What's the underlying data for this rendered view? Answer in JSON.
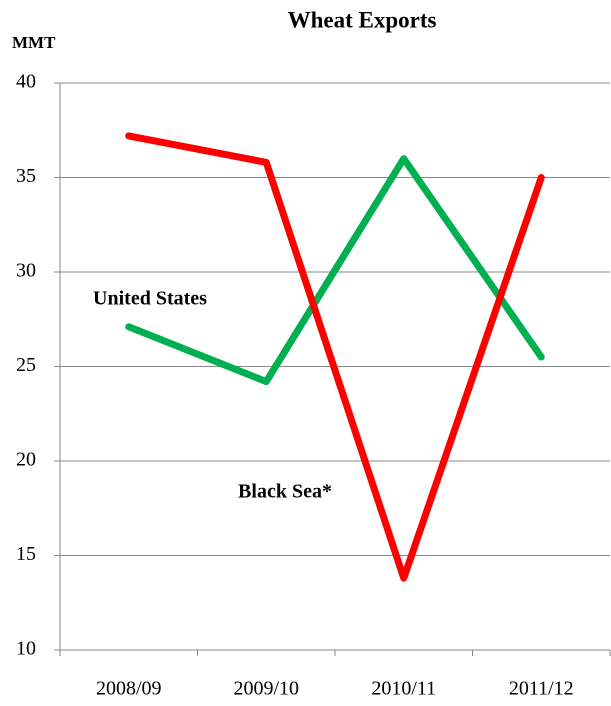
{
  "chart_data": {
    "type": "line",
    "title": "Wheat Exports",
    "y_label": "MMT",
    "categories": [
      "2008/09",
      "2009/10",
      "2010/11",
      "2011/12"
    ],
    "series": [
      {
        "name": "United States",
        "color": "#00b050",
        "values": [
          27.1,
          24.2,
          36.0,
          25.5
        ]
      },
      {
        "name": "Black Sea*",
        "color": "#ff0000",
        "values": [
          37.2,
          35.8,
          13.8,
          35.0
        ]
      }
    ],
    "ylim": [
      10,
      40
    ],
    "yticks": [
      10,
      15,
      20,
      25,
      30,
      35,
      40
    ],
    "grid": true
  }
}
